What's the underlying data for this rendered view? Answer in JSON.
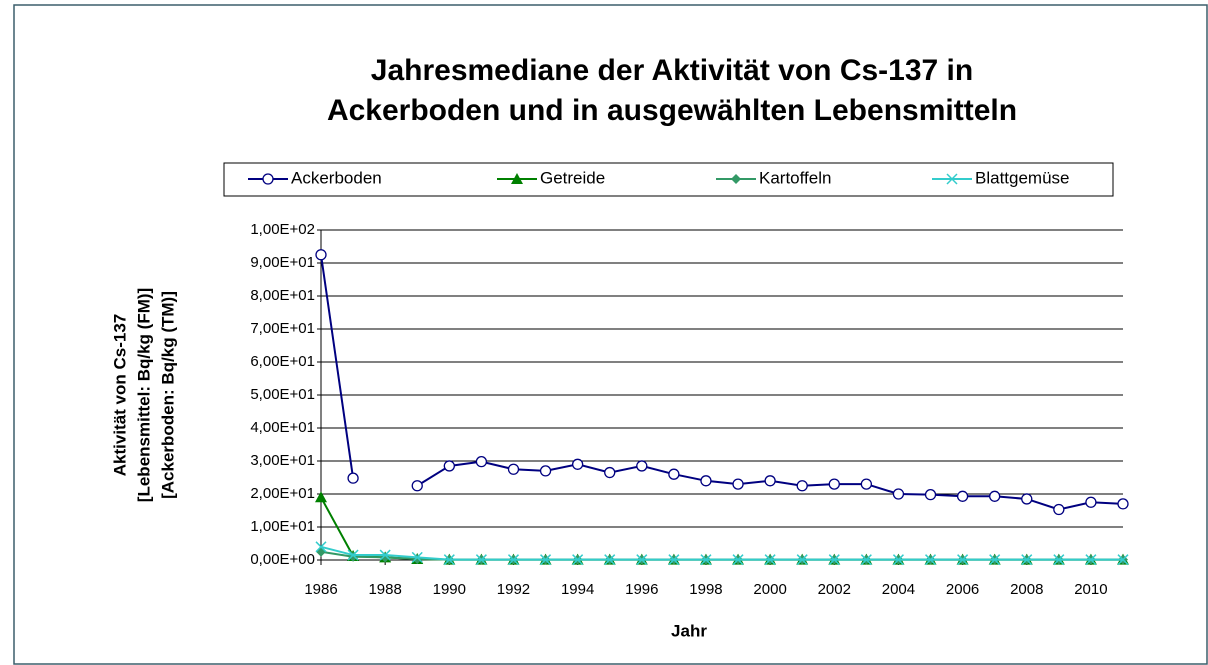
{
  "chart_data": {
    "type": "line",
    "title": [
      "Jahresmediane der Aktivität von Cs-137 in",
      "Ackerboden und in ausgewählten Lebensmitteln"
    ],
    "x_label": "Jahr",
    "y_label": [
      "Aktivität von Cs-137",
      "[Lebensmittel: Bq/kg (FM)]",
      "[Ackerboden: Bq/kg (TM)]"
    ],
    "x": [
      1986,
      1987,
      1988,
      1989,
      1990,
      1991,
      1992,
      1993,
      1994,
      1995,
      1996,
      1997,
      1998,
      1999,
      2000,
      2001,
      2002,
      2003,
      2004,
      2005,
      2006,
      2007,
      2008,
      2009,
      2010,
      2011
    ],
    "xlim": [
      1986,
      2011
    ],
    "xticks": [
      1986,
      1988,
      1990,
      1992,
      1994,
      1996,
      1998,
      2000,
      2002,
      2004,
      2006,
      2008,
      2010
    ],
    "ylim": [
      0,
      100
    ],
    "yticks": [
      {
        "value": 0,
        "label": "0,00E+00"
      },
      {
        "value": 10,
        "label": "1,00E+01"
      },
      {
        "value": 20,
        "label": "2,00E+01"
      },
      {
        "value": 30,
        "label": "3,00E+01"
      },
      {
        "value": 40,
        "label": "4,00E+01"
      },
      {
        "value": 50,
        "label": "5,00E+01"
      },
      {
        "value": 60,
        "label": "6,00E+01"
      },
      {
        "value": 70,
        "label": "7,00E+01"
      },
      {
        "value": 80,
        "label": "8,00E+01"
      },
      {
        "value": 90,
        "label": "9,00E+01"
      },
      {
        "value": 100,
        "label": "1,00E+02"
      }
    ],
    "grid": true,
    "legend": "top",
    "series": [
      {
        "name": "Ackerboden",
        "color": "#000080",
        "marker": "circle",
        "values": [
          92.5,
          24.8,
          null,
          22.5,
          28.5,
          29.8,
          27.5,
          27,
          29,
          26.5,
          28.5,
          26,
          24,
          23,
          24,
          22.5,
          23,
          23,
          20,
          19.8,
          19.3,
          19.3,
          18.5,
          15.3,
          17.5,
          17
        ]
      },
      {
        "name": "Getreide",
        "color": "#008000",
        "marker": "triangle",
        "values": [
          19,
          1.2,
          0.8,
          0.3,
          0.1,
          0.1,
          0.1,
          0.1,
          0.1,
          0.1,
          0.1,
          0.1,
          0.1,
          0.1,
          0.1,
          0.1,
          0.1,
          0.1,
          0.1,
          0.1,
          0.1,
          0.1,
          0.1,
          0.1,
          0.1,
          0.1
        ]
      },
      {
        "name": "Kartoffeln",
        "color": "#339966",
        "marker": "diamond",
        "values": [
          2.5,
          1,
          0.8,
          0.3,
          0.1,
          0.1,
          0.1,
          0.1,
          0.1,
          0.1,
          0.1,
          0.1,
          0.1,
          0.1,
          0.1,
          0.1,
          0.1,
          0.1,
          0.1,
          0.1,
          0.1,
          0.1,
          0.1,
          0.1,
          0.1,
          0.1
        ]
      },
      {
        "name": "Blattgemüse",
        "color": "#33CCCC",
        "marker": "x",
        "values": [
          4,
          1.5,
          1.5,
          0.8,
          0.1,
          0.1,
          0.1,
          0.1,
          0.1,
          0.1,
          0.1,
          0.1,
          0.1,
          0.1,
          0.1,
          0.1,
          0.1,
          0.1,
          0.1,
          0.1,
          0.1,
          0.1,
          0.1,
          0.1,
          0.1,
          0.1
        ]
      }
    ]
  }
}
